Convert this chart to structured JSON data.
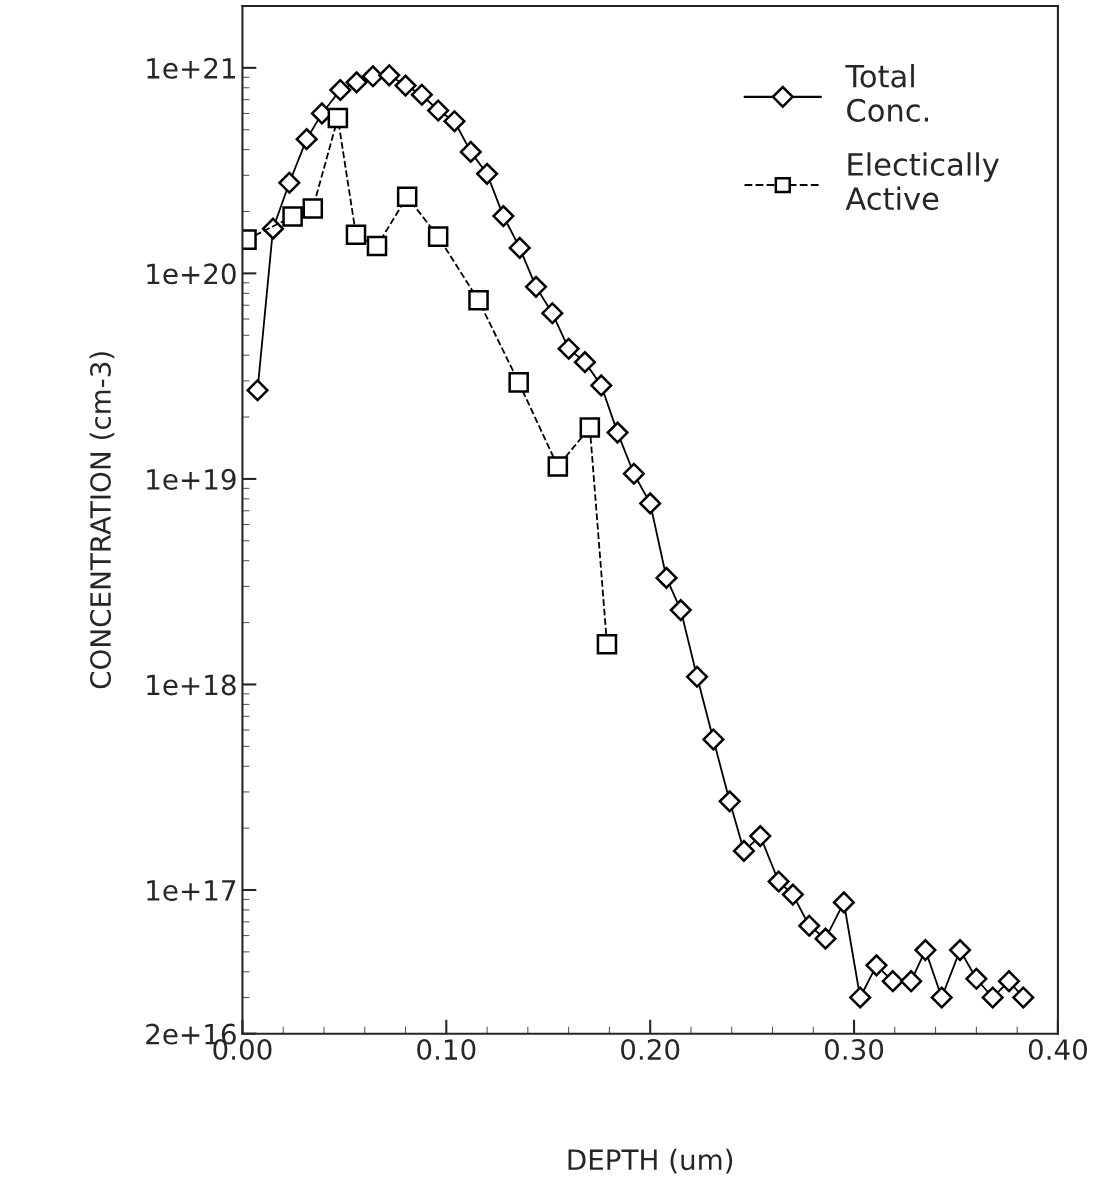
{
  "chart_data": {
    "type": "line",
    "xlabel": "DEPTH (um)",
    "ylabel": "CONCENTRATION (cm-3)",
    "log": "y",
    "grid": false,
    "legend": "top right",
    "xlim": [
      0,
      0.4
    ],
    "ylim": [
      2e+16,
      2e+21
    ],
    "xticks": [
      {
        "value": 0,
        "label": "0.00"
      },
      {
        "value": 0.1,
        "label": "0.10"
      },
      {
        "value": 0.2,
        "label": "0.20"
      },
      {
        "value": 0.3,
        "label": "0.30"
      },
      {
        "value": 0.4,
        "label": "0.40"
      }
    ],
    "yticks": [
      {
        "value": 2e+16,
        "label": "2e+16"
      },
      {
        "value": 1e+17,
        "label": "1e+17"
      },
      {
        "value": 1e+18,
        "label": "1e+18"
      },
      {
        "value": 1e+19,
        "label": "1e+19"
      },
      {
        "value": 1e+20,
        "label": "1e+20"
      },
      {
        "value": 1e+21,
        "label": "1e+21"
      }
    ],
    "series": [
      {
        "name": "Total\nConc.",
        "color": "#000000",
        "marker": "diamond",
        "line_style": "solid",
        "x": [
          0.0074,
          0.015,
          0.023,
          0.0315,
          0.039,
          0.048,
          0.056,
          0.064,
          0.072,
          0.08,
          0.088,
          0.096,
          0.104,
          0.112,
          0.12,
          0.128,
          0.136,
          0.144,
          0.152,
          0.16,
          0.168,
          0.176,
          0.184,
          0.192,
          0.2,
          0.208,
          0.215,
          0.223,
          0.231,
          0.239,
          0.246,
          0.254,
          0.263,
          0.27,
          0.278,
          0.286,
          0.295,
          0.303,
          0.311,
          0.319,
          0.328,
          0.335,
          0.343,
          0.352,
          0.36,
          0.368,
          0.376,
          0.383
        ],
        "values": [
          2.7e+19,
          1.65e+20,
          2.76e+20,
          4.5e+20,
          6e+20,
          7.8e+20,
          8.5e+20,
          9.1e+20,
          9.2e+20,
          8.2e+20,
          7.4e+20,
          6.2e+20,
          5.5e+20,
          3.9e+20,
          3.05e+20,
          1.9e+20,
          1.33e+20,
          8.6e+19,
          6.4e+19,
          4.3e+19,
          3.7e+19,
          2.85e+19,
          1.68e+19,
          1.06e+19,
          7.6e+18,
          3.3e+18,
          2.3e+18,
          1.09e+18,
          5.4e+17,
          2.7e+17,
          1.55e+17,
          1.83e+17,
          1.1e+17,
          9.5e+16,
          6.7e+16,
          5.8e+16,
          8.7e+16,
          3e+16,
          4.3e+16,
          3.6e+16,
          3.6e+16,
          5.1e+16,
          3e+16,
          5.1e+16,
          3.7e+16,
          3e+16,
          3.6e+16,
          3e+16
        ]
      },
      {
        "name": "Electically\nActive",
        "color": "#000000",
        "marker": "square",
        "line_style": "dashed",
        "x": [
          0.002,
          0.0246,
          0.0345,
          0.0468,
          0.0557,
          0.066,
          0.0808,
          0.096,
          0.1158,
          0.1355,
          0.1547,
          0.1704,
          0.1788
        ],
        "values": [
          1.46e+20,
          1.89e+20,
          2.07e+20,
          5.7e+20,
          1.54e+20,
          1.36e+20,
          2.36e+20,
          1.51e+20,
          7.4e+19,
          2.95e+19,
          1.15e+19,
          1.78e+19,
          1.57e+18
        ]
      }
    ]
  }
}
